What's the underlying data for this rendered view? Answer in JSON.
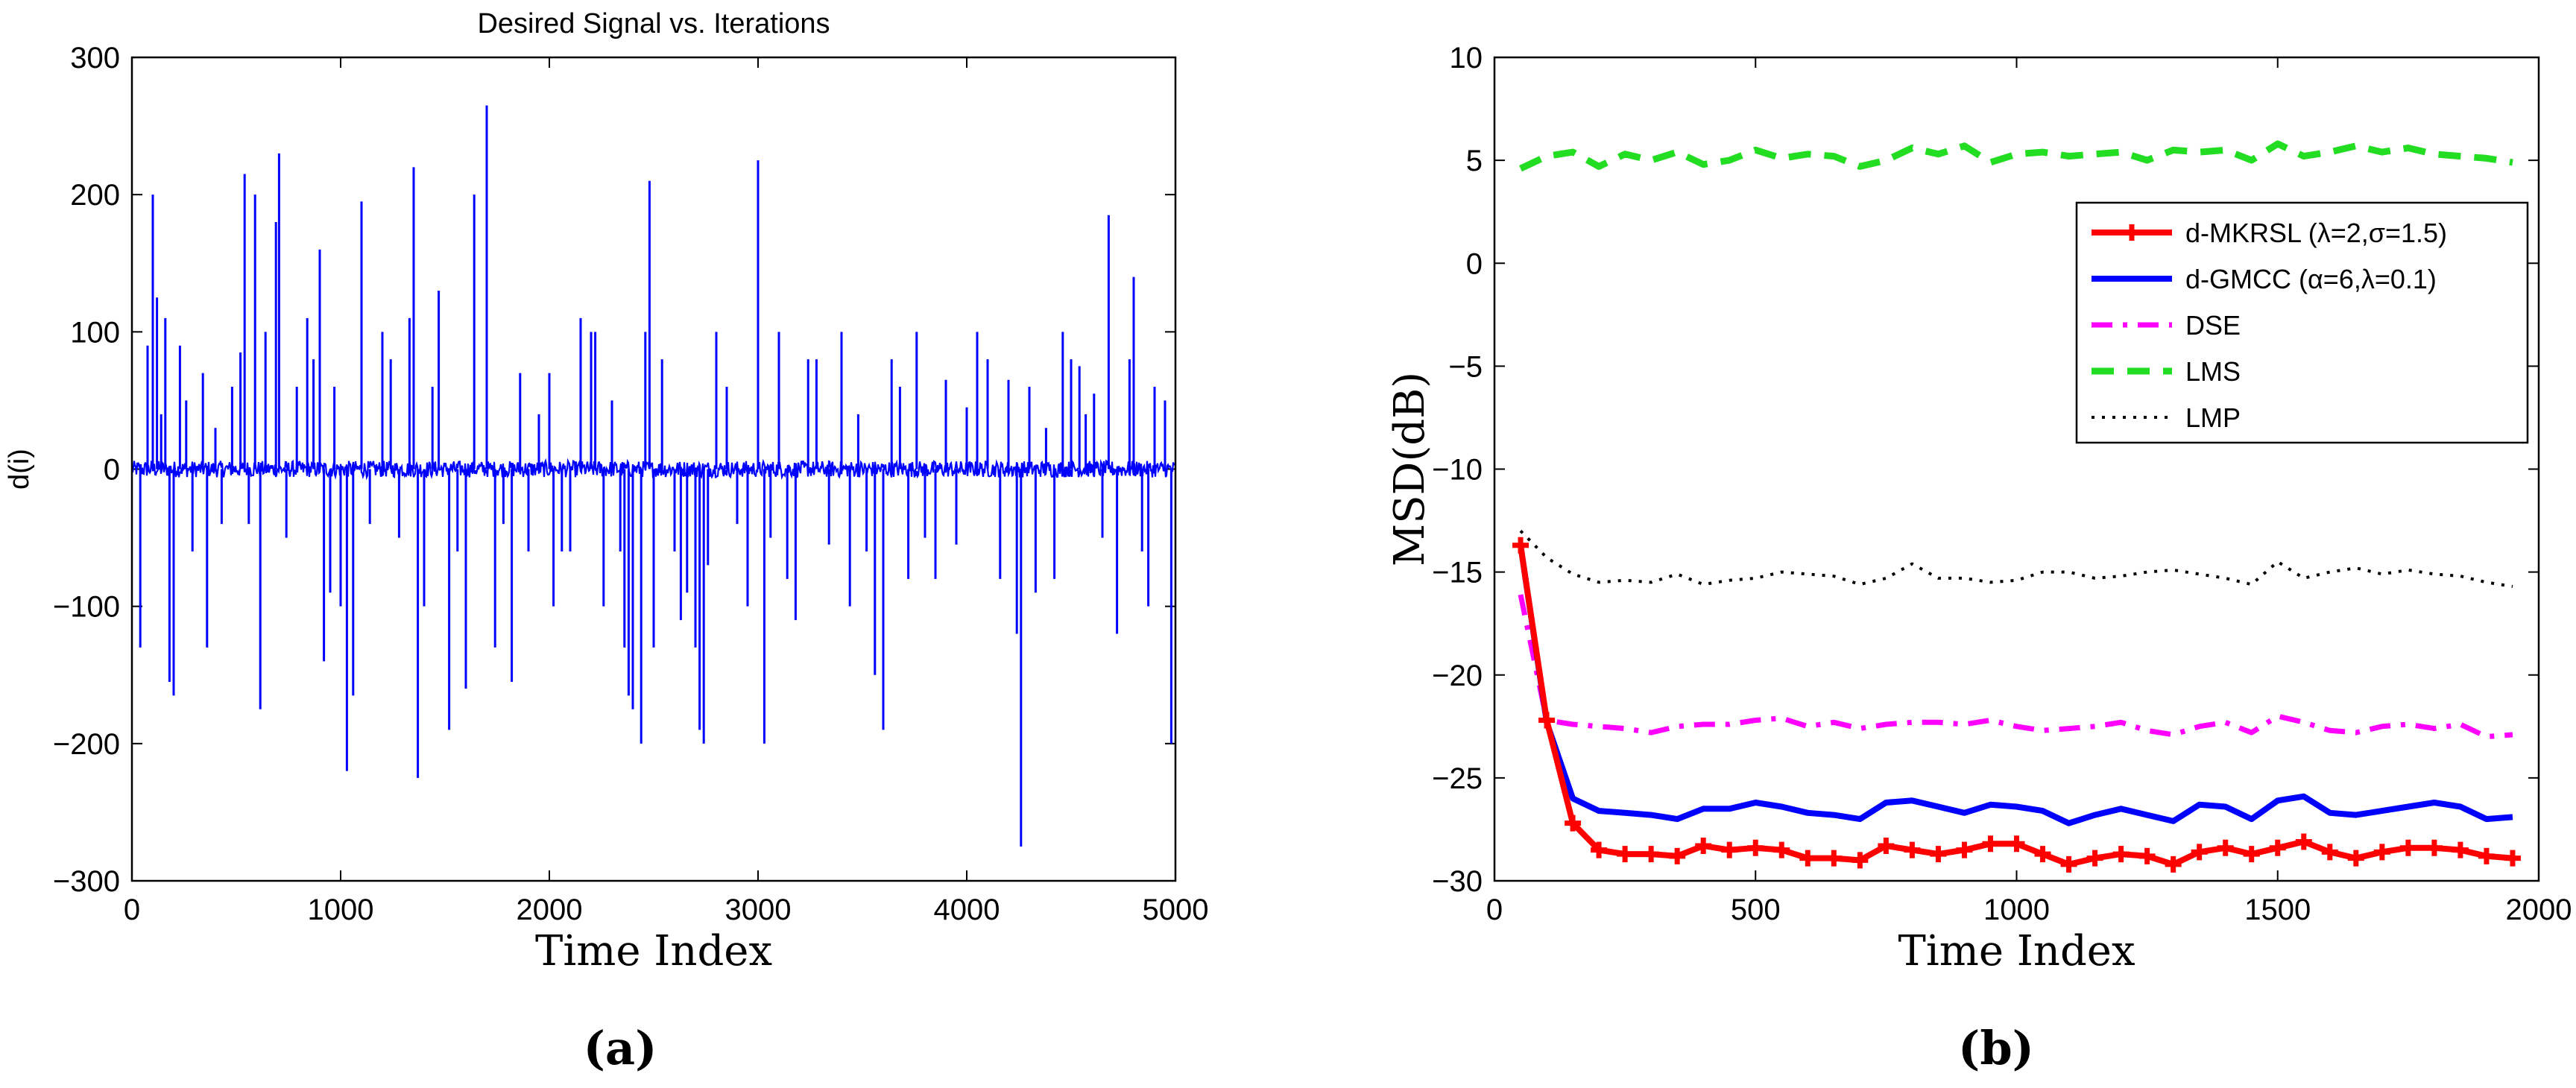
{
  "chart_data": [
    {
      "type": "line",
      "panel_label": "(a)",
      "title": "Desired Signal vs. Iterations",
      "xlabel": "Time Index",
      "ylabel": "d(i)",
      "xlim": [
        0,
        5000
      ],
      "ylim": [
        -300,
        300
      ],
      "xticks": [
        0,
        1000,
        2000,
        3000,
        4000,
        5000
      ],
      "yticks": [
        -300,
        -200,
        -100,
        0,
        100,
        200,
        300
      ],
      "xtick_labels": [
        "0",
        "1000",
        "2000",
        "3000",
        "4000",
        "5000"
      ],
      "ytick_labels": [
        "−300",
        "−200",
        "−100",
        "0",
        "100",
        "200",
        "300"
      ],
      "series": [
        {
          "name": "d(i)",
          "color": "#0000ff",
          "baseline_noise": 6,
          "spikes": [
            [
              40,
              -130
            ],
            [
              75,
              90
            ],
            [
              100,
              200
            ],
            [
              120,
              125
            ],
            [
              140,
              40
            ],
            [
              160,
              110
            ],
            [
              180,
              -155
            ],
            [
              200,
              -165
            ],
            [
              230,
              90
            ],
            [
              260,
              50
            ],
            [
              290,
              -60
            ],
            [
              340,
              70
            ],
            [
              360,
              -130
            ],
            [
              400,
              30
            ],
            [
              430,
              -40
            ],
            [
              480,
              60
            ],
            [
              520,
              85
            ],
            [
              540,
              215
            ],
            [
              560,
              -40
            ],
            [
              590,
              200
            ],
            [
              615,
              -175
            ],
            [
              640,
              100
            ],
            [
              690,
              180
            ],
            [
              705,
              230
            ],
            [
              740,
              -50
            ],
            [
              790,
              60
            ],
            [
              840,
              110
            ],
            [
              870,
              80
            ],
            [
              900,
              160
            ],
            [
              920,
              -140
            ],
            [
              950,
              -90
            ],
            [
              970,
              60
            ],
            [
              1000,
              -100
            ],
            [
              1030,
              -220
            ],
            [
              1060,
              -165
            ],
            [
              1100,
              195
            ],
            [
              1140,
              -40
            ],
            [
              1200,
              100
            ],
            [
              1240,
              80
            ],
            [
              1280,
              -50
            ],
            [
              1330,
              110
            ],
            [
              1350,
              220
            ],
            [
              1370,
              -225
            ],
            [
              1400,
              -100
            ],
            [
              1440,
              60
            ],
            [
              1470,
              130
            ],
            [
              1520,
              -190
            ],
            [
              1560,
              -60
            ],
            [
              1600,
              -160
            ],
            [
              1640,
              200
            ],
            [
              1700,
              265
            ],
            [
              1740,
              -130
            ],
            [
              1780,
              -40
            ],
            [
              1820,
              -155
            ],
            [
              1860,
              70
            ],
            [
              1900,
              -60
            ],
            [
              1950,
              40
            ],
            [
              2000,
              70
            ],
            [
              2020,
              -100
            ],
            [
              2060,
              -60
            ],
            [
              2100,
              -60
            ],
            [
              2150,
              110
            ],
            [
              2200,
              100
            ],
            [
              2220,
              100
            ],
            [
              2260,
              -100
            ],
            [
              2300,
              50
            ],
            [
              2340,
              -60
            ],
            [
              2360,
              -130
            ],
            [
              2380,
              -165
            ],
            [
              2400,
              -175
            ],
            [
              2440,
              -200
            ],
            [
              2460,
              100
            ],
            [
              2480,
              210
            ],
            [
              2500,
              -130
            ],
            [
              2540,
              80
            ],
            [
              2600,
              -60
            ],
            [
              2630,
              -110
            ],
            [
              2660,
              -90
            ],
            [
              2700,
              -130
            ],
            [
              2720,
              -190
            ],
            [
              2740,
              -200
            ],
            [
              2760,
              -70
            ],
            [
              2800,
              100
            ],
            [
              2850,
              60
            ],
            [
              2900,
              -40
            ],
            [
              2950,
              -100
            ],
            [
              3000,
              225
            ],
            [
              3030,
              -200
            ],
            [
              3060,
              -50
            ],
            [
              3100,
              100
            ],
            [
              3140,
              -80
            ],
            [
              3180,
              -110
            ],
            [
              3240,
              80
            ],
            [
              3280,
              80
            ],
            [
              3340,
              -55
            ],
            [
              3400,
              100
            ],
            [
              3440,
              -100
            ],
            [
              3480,
              40
            ],
            [
              3520,
              -60
            ],
            [
              3560,
              -150
            ],
            [
              3600,
              -190
            ],
            [
              3640,
              80
            ],
            [
              3680,
              60
            ],
            [
              3720,
              -80
            ],
            [
              3760,
              100
            ],
            [
              3800,
              -50
            ],
            [
              3850,
              -80
            ],
            [
              3900,
              65
            ],
            [
              3950,
              -55
            ],
            [
              4000,
              45
            ],
            [
              4050,
              100
            ],
            [
              4100,
              80
            ],
            [
              4160,
              -80
            ],
            [
              4200,
              65
            ],
            [
              4240,
              -120
            ],
            [
              4260,
              -275
            ],
            [
              4300,
              60
            ],
            [
              4330,
              -90
            ],
            [
              4380,
              30
            ],
            [
              4420,
              -80
            ],
            [
              4460,
              100
            ],
            [
              4500,
              80
            ],
            [
              4540,
              75
            ],
            [
              4570,
              40
            ],
            [
              4610,
              55
            ],
            [
              4650,
              -50
            ],
            [
              4680,
              185
            ],
            [
              4720,
              -120
            ],
            [
              4780,
              80
            ],
            [
              4800,
              140
            ],
            [
              4840,
              -60
            ],
            [
              4870,
              -100
            ],
            [
              4900,
              60
            ],
            [
              4950,
              50
            ],
            [
              4980,
              -200
            ]
          ]
        }
      ]
    },
    {
      "type": "line",
      "panel_label": "(b)",
      "title": "",
      "xlabel": "Time Index",
      "ylabel": "MSD(dB)",
      "xlim": [
        0,
        2000
      ],
      "ylim": [
        -30,
        10
      ],
      "xticks": [
        0,
        500,
        1000,
        1500,
        2000
      ],
      "yticks": [
        -30,
        -25,
        -20,
        -15,
        -10,
        -5,
        0,
        5,
        10
      ],
      "xtick_labels": [
        "0",
        "500",
        "1000",
        "1500",
        "2000"
      ],
      "ytick_labels": [
        "−30",
        "−25",
        "−20",
        "−15",
        "−10",
        "−5",
        "0",
        "5",
        "10"
      ],
      "legend_position": "top-right",
      "x": [
        50,
        100,
        150,
        200,
        250,
        300,
        350,
        400,
        450,
        500,
        550,
        600,
        650,
        700,
        750,
        800,
        850,
        900,
        950,
        1000,
        1050,
        1100,
        1150,
        1200,
        1250,
        1300,
        1350,
        1400,
        1450,
        1500,
        1550,
        1600,
        1650,
        1700,
        1750,
        1800,
        1850,
        1900,
        1950
      ],
      "series": [
        {
          "name": "d-MKRSL (λ=2,σ=1.5)",
          "color": "#ff0000",
          "style": "solid-plus",
          "values": [
            -13.7,
            -22.2,
            -27.2,
            -28.5,
            -28.7,
            -28.7,
            -28.8,
            -28.3,
            -28.5,
            -28.4,
            -28.5,
            -28.9,
            -28.9,
            -29.0,
            -28.3,
            -28.5,
            -28.7,
            -28.5,
            -28.2,
            -28.2,
            -28.7,
            -29.2,
            -28.9,
            -28.7,
            -28.8,
            -29.2,
            -28.6,
            -28.4,
            -28.7,
            -28.4,
            -28.1,
            -28.6,
            -28.9,
            -28.6,
            -28.4,
            -28.4,
            -28.5,
            -28.8,
            -28.9
          ]
        },
        {
          "name": "d-GMCC (α=6,λ=0.1)",
          "color": "#0000ff",
          "style": "solid",
          "values": [
            -13.7,
            -22.3,
            -26.0,
            -26.6,
            -26.7,
            -26.8,
            -27.0,
            -26.5,
            -26.5,
            -26.2,
            -26.4,
            -26.7,
            -26.8,
            -27.0,
            -26.2,
            -26.1,
            -26.4,
            -26.7,
            -26.3,
            -26.4,
            -26.6,
            -27.2,
            -26.8,
            -26.5,
            -26.8,
            -27.1,
            -26.3,
            -26.4,
            -27.0,
            -26.1,
            -25.9,
            -26.7,
            -26.8,
            -26.6,
            -26.4,
            -26.2,
            -26.4,
            -27.0,
            -26.9
          ]
        },
        {
          "name": "DSE",
          "color": "#ff00ff",
          "style": "dash-dot",
          "values": [
            -16.1,
            -22.2,
            -22.4,
            -22.5,
            -22.6,
            -22.8,
            -22.5,
            -22.4,
            -22.4,
            -22.2,
            -22.1,
            -22.5,
            -22.3,
            -22.6,
            -22.4,
            -22.3,
            -22.3,
            -22.4,
            -22.2,
            -22.5,
            -22.7,
            -22.6,
            -22.5,
            -22.3,
            -22.7,
            -22.9,
            -22.5,
            -22.3,
            -22.8,
            -22.0,
            -22.3,
            -22.7,
            -22.8,
            -22.5,
            -22.4,
            -22.6,
            -22.4,
            -23.0,
            -22.9
          ]
        },
        {
          "name": "LMS",
          "color": "#22dd22",
          "style": "dashed",
          "values": [
            4.6,
            5.2,
            5.4,
            4.7,
            5.3,
            5.0,
            5.4,
            4.8,
            5.0,
            5.5,
            5.1,
            5.3,
            5.2,
            4.7,
            5.0,
            5.6,
            5.3,
            5.7,
            4.9,
            5.3,
            5.4,
            5.2,
            5.3,
            5.4,
            5.0,
            5.5,
            5.4,
            5.5,
            5.0,
            5.8,
            5.2,
            5.4,
            5.7,
            5.4,
            5.6,
            5.3,
            5.2,
            5.1,
            4.9
          ]
        },
        {
          "name": "LMP",
          "color": "#000000",
          "style": "dotted",
          "values": [
            -13.0,
            -14.3,
            -15.1,
            -15.5,
            -15.4,
            -15.5,
            -15.1,
            -15.6,
            -15.4,
            -15.3,
            -15.0,
            -15.1,
            -15.2,
            -15.6,
            -15.3,
            -14.6,
            -15.3,
            -15.3,
            -15.5,
            -15.4,
            -15.0,
            -15.0,
            -15.3,
            -15.2,
            -15.0,
            -14.9,
            -15.1,
            -15.3,
            -15.6,
            -14.5,
            -15.3,
            -15.0,
            -14.8,
            -15.1,
            -14.9,
            -15.1,
            -15.2,
            -15.5,
            -15.7
          ]
        }
      ]
    }
  ]
}
